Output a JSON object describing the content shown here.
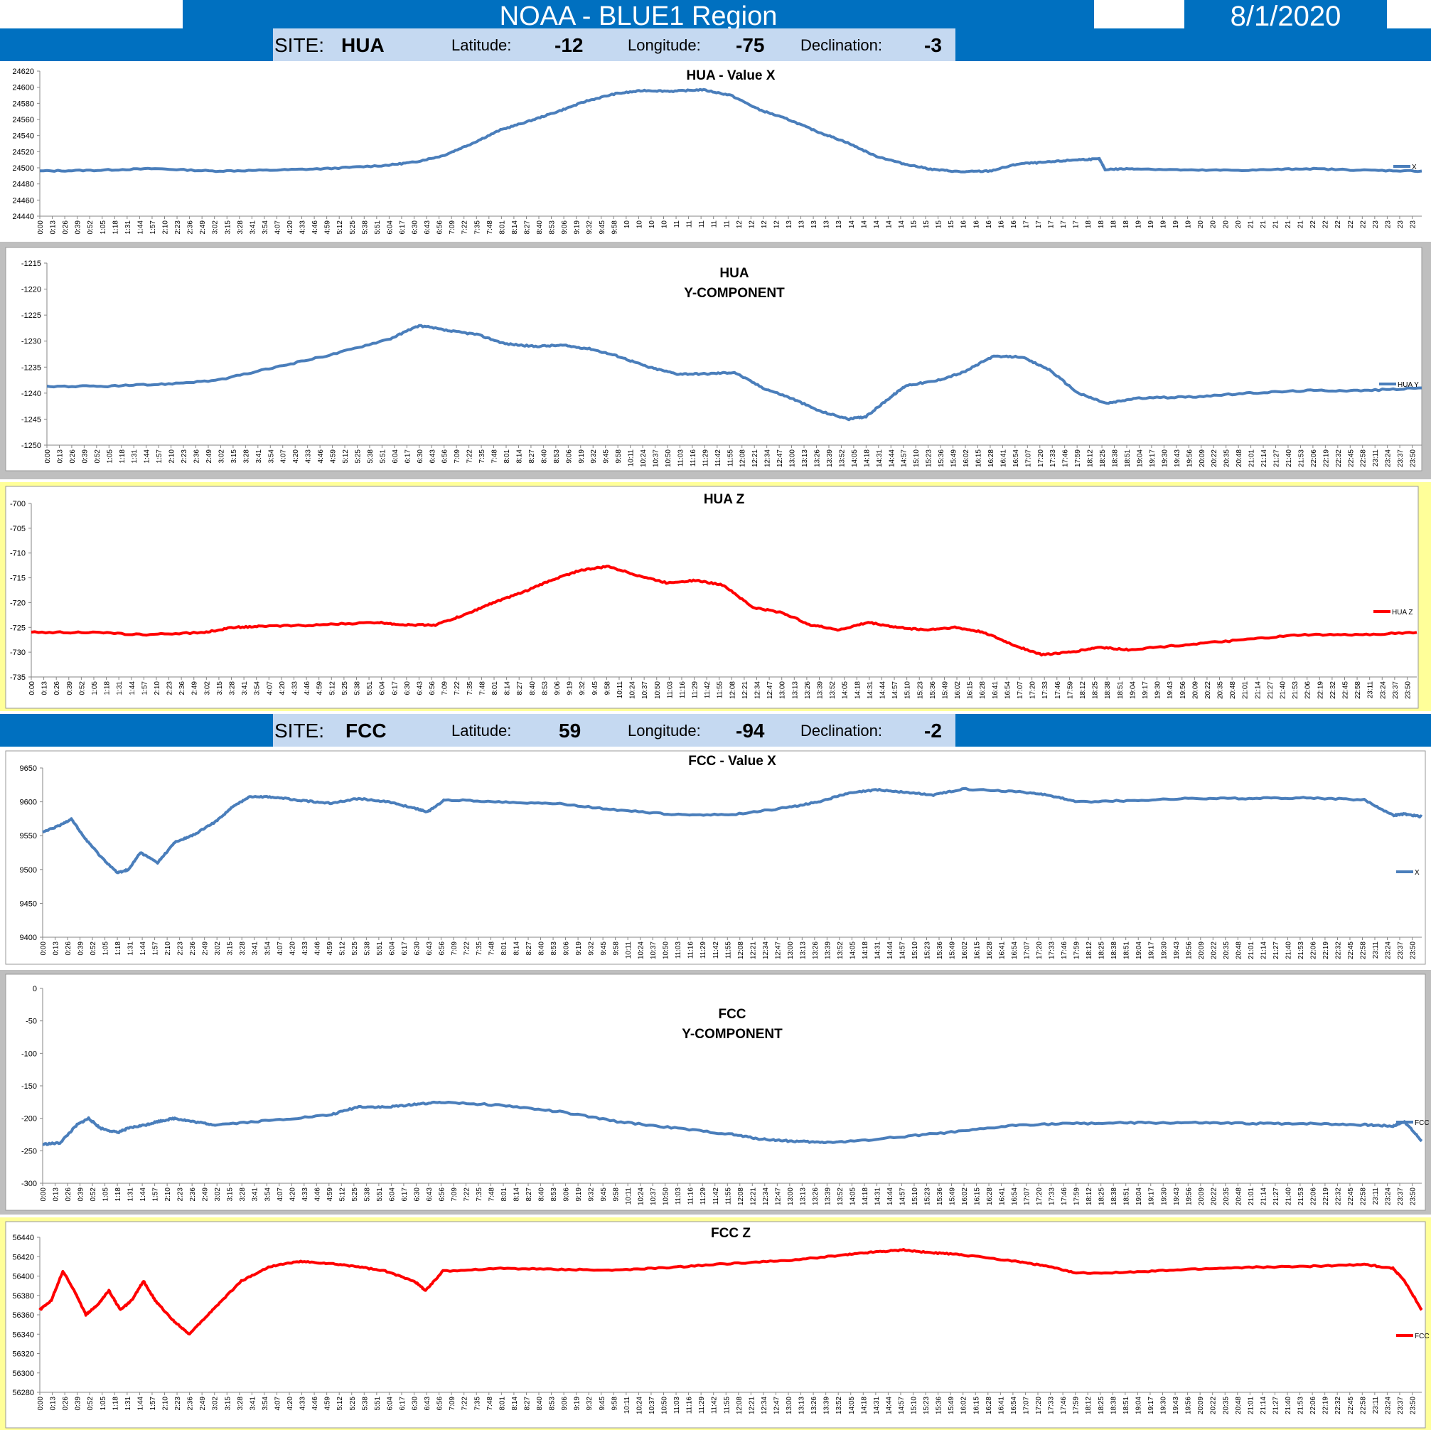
{
  "header": {
    "title": "NOAA - BLUE1 Region",
    "date": "8/1/2020"
  },
  "sites": [
    {
      "site_label": "SITE:",
      "site": "HUA",
      "lat_label": "Latitude:",
      "lat": "-12",
      "lon_label": "Longitude:",
      "lon": "-75",
      "dec_label": "Declination:",
      "dec": "-3"
    },
    {
      "site_label": "SITE:",
      "site": "FCC",
      "lat_label": "Latitude:",
      "lat": "59",
      "lon_label": "Longitude:",
      "lon": "-94",
      "dec_label": "Declination:",
      "dec": "-2"
    }
  ],
  "colors": {
    "blue_series": "#4a7ebb",
    "red_series": "#ff0000",
    "banner": "#0070c0",
    "site_box": "#c5d9f1",
    "gray_frame": "#bfbfbf",
    "yellow_frame": "#ffff99"
  },
  "chart_data": [
    {
      "id": "hua-x",
      "type": "line",
      "title": "HUA - Value X",
      "legend": "X",
      "legend_position": "right",
      "ylim": [
        24440,
        24620
      ],
      "yticks": [
        24440,
        24460,
        24480,
        24500,
        24520,
        24540,
        24560,
        24580,
        24600,
        24620
      ],
      "tick_start": "0:00",
      "tick_step_min": 13,
      "tick_cut_after": "9:58",
      "x": [
        0,
        1,
        2,
        3,
        4,
        5,
        6,
        6.5,
        7,
        7.5,
        8,
        8.5,
        9,
        9.5,
        10,
        10.5,
        11,
        11.5,
        12,
        12.5,
        13,
        13.5,
        14,
        14.5,
        15,
        15.5,
        16,
        16.5,
        17,
        17.5,
        18,
        18.4,
        18.5,
        19,
        20,
        21,
        22,
        23,
        24
      ],
      "values": [
        24496,
        24497,
        24499,
        24496,
        24497,
        24499,
        24503,
        24507,
        24515,
        24530,
        24547,
        24558,
        24570,
        24583,
        24592,
        24596,
        24595,
        24597,
        24590,
        24572,
        24560,
        24545,
        24532,
        24515,
        24505,
        24498,
        24495,
        24496,
        24505,
        24507,
        24510,
        24511,
        24498,
        24499,
        24497,
        24497,
        24499,
        24497,
        24496
      ]
    },
    {
      "id": "hua-y",
      "type": "line",
      "title": "HUA",
      "subtitle": "Y-COMPONENT",
      "legend": "HUA Y",
      "legend_position": "right",
      "ylim": [
        -1250,
        -1215
      ],
      "yticks": [
        -1250,
        -1245,
        -1240,
        -1235,
        -1230,
        -1225,
        -1220,
        -1215
      ],
      "tick_start": "0:00",
      "tick_step_min": 13,
      "x": [
        0,
        1,
        2,
        3,
        4,
        5,
        6,
        6.5,
        7,
        7.5,
        8,
        8.5,
        9,
        9.5,
        10,
        10.5,
        11,
        11.5,
        12,
        12.5,
        13,
        13.5,
        14,
        14.3,
        14.7,
        15,
        15.5,
        16,
        16.5,
        17,
        17.5,
        18,
        18.5,
        19,
        20,
        21,
        22,
        23,
        24
      ],
      "values": [
        -1238.7,
        -1238.7,
        -1238.3,
        -1237.5,
        -1235,
        -1232.5,
        -1229.5,
        -1227,
        -1228,
        -1228.7,
        -1230.5,
        -1231,
        -1230.8,
        -1231.5,
        -1233,
        -1235,
        -1236.3,
        -1236.3,
        -1236,
        -1239,
        -1241,
        -1243.5,
        -1245,
        -1244.5,
        -1241,
        -1238.5,
        -1237.7,
        -1236,
        -1233,
        -1233,
        -1235.5,
        -1240,
        -1242,
        -1241,
        -1240.7,
        -1240,
        -1239.5,
        -1239.5,
        -1239
      ]
    },
    {
      "id": "hua-z",
      "type": "line",
      "title": "HUA Z",
      "legend": "HUA Z",
      "legend_position": "right",
      "ylim": [
        -735,
        -700
      ],
      "yticks": [
        -700,
        -705,
        -710,
        -715,
        -720,
        -725,
        -730,
        -735
      ],
      "tick_start": "0:00",
      "tick_step_min": 13,
      "x": [
        0,
        1,
        2,
        3,
        3.5,
        4,
        5,
        6,
        6.5,
        7,
        7.5,
        8,
        8.5,
        9,
        9.5,
        10,
        10.5,
        11,
        11.5,
        12,
        12.5,
        13,
        13.5,
        14,
        14.5,
        15,
        15.5,
        16,
        16.5,
        17,
        17.5,
        18,
        18.5,
        19,
        20,
        21,
        22,
        23,
        24
      ],
      "values": [
        -726,
        -726,
        -726.5,
        -726,
        -725,
        -724.8,
        -724.5,
        -724,
        -724.5,
        -724.5,
        -722.5,
        -720,
        -718,
        -715.5,
        -713.5,
        -712.7,
        -714.5,
        -716,
        -715.5,
        -716.5,
        -721,
        -722,
        -724.5,
        -725.5,
        -724,
        -725,
        -725.5,
        -725,
        -726,
        -728.5,
        -730.5,
        -730,
        -729,
        -729.5,
        -728.5,
        -727.5,
        -726.5,
        -726.5,
        -726
      ]
    },
    {
      "id": "fcc-x",
      "type": "line",
      "title": "FCC - Value X",
      "legend": "X",
      "legend_position": "right",
      "ylim": [
        9400,
        9650
      ],
      "yticks": [
        9400,
        9450,
        9500,
        9550,
        9600,
        9650
      ],
      "tick_start": "0:00",
      "tick_step_min": 13,
      "x": [
        0,
        0.3,
        0.5,
        0.7,
        1,
        1.3,
        1.5,
        1.7,
        2,
        2.3,
        2.6,
        3,
        3.3,
        3.6,
        4,
        4.5,
        5,
        5.5,
        6,
        6.5,
        6.7,
        7,
        8,
        9,
        10,
        11,
        12,
        13,
        13.5,
        14,
        14.5,
        15,
        15.5,
        16,
        17,
        17.5,
        18,
        19,
        20,
        21,
        22,
        23,
        23.5,
        23.7,
        24
      ],
      "values": [
        9555,
        9565,
        9575,
        9550,
        9520,
        9495,
        9500,
        9525,
        9510,
        9540,
        9550,
        9570,
        9592,
        9608,
        9607,
        9602,
        9598,
        9605,
        9600,
        9590,
        9585,
        9603,
        9600,
        9597,
        9588,
        9581,
        9581,
        9592,
        9600,
        9612,
        9618,
        9614,
        9610,
        9619,
        9615,
        9610,
        9600,
        9602,
        9605,
        9605,
        9606,
        9603,
        9580,
        9582,
        9578
      ]
    },
    {
      "id": "fcc-y",
      "type": "line",
      "title": "FCC",
      "subtitle": "Y-COMPONENT",
      "legend": "FCC Y",
      "legend_position": "right",
      "ylim": [
        -300,
        0
      ],
      "yticks": [
        0,
        -50,
        -100,
        -150,
        -200,
        -250,
        -300
      ],
      "tick_start": "0:00",
      "tick_step_min": 13,
      "x": [
        0,
        0.3,
        0.6,
        0.8,
        1,
        1.3,
        1.5,
        1.8,
        2,
        2.3,
        2.6,
        3,
        4,
        5,
        5.5,
        6,
        6.5,
        7,
        8,
        9,
        10,
        11,
        12,
        12.5,
        13,
        13.5,
        14,
        15,
        16,
        17,
        18,
        19,
        20,
        21,
        22,
        23,
        23.5,
        23.7,
        24
      ],
      "values": [
        -240,
        -238,
        -210,
        -200,
        -215,
        -222,
        -215,
        -210,
        -205,
        -200,
        -205,
        -210,
        -203,
        -195,
        -182,
        -183,
        -178,
        -175,
        -180,
        -190,
        -205,
        -215,
        -225,
        -232,
        -235,
        -237,
        -236,
        -228,
        -220,
        -210,
        -208,
        -207,
        -207,
        -208,
        -208,
        -210,
        -212,
        -205,
        -235
      ]
    },
    {
      "id": "fcc-z",
      "type": "line",
      "title": "FCC Z",
      "legend": "FCC Z",
      "legend_position": "right",
      "ylim": [
        56280,
        56440
      ],
      "yticks": [
        56280,
        56300,
        56320,
        56340,
        56360,
        56380,
        56400,
        56420,
        56440
      ],
      "tick_start": "0:00",
      "tick_step_min": 13,
      "x": [
        0,
        0.2,
        0.4,
        0.6,
        0.8,
        1,
        1.2,
        1.4,
        1.6,
        1.8,
        2,
        2.3,
        2.6,
        3,
        3.5,
        4,
        4.5,
        5,
        5.5,
        6,
        6.5,
        6.7,
        7,
        8,
        9,
        10,
        11,
        12,
        13,
        14,
        14.5,
        15,
        15.5,
        16,
        17,
        17.5,
        18,
        19,
        20,
        21,
        22,
        23,
        23.5,
        23.7,
        24
      ],
      "values": [
        56365,
        56375,
        56405,
        56385,
        56360,
        56370,
        56385,
        56365,
        56375,
        56395,
        56375,
        56355,
        56340,
        56365,
        56395,
        56410,
        56415,
        56413,
        56410,
        56405,
        56395,
        56385,
        56405,
        56408,
        56407,
        56406,
        56409,
        56413,
        56416,
        56422,
        56425,
        56427,
        56424,
        56422,
        56415,
        56410,
        56403,
        56404,
        56407,
        56409,
        56410,
        56412,
        56408,
        56395,
        56365
      ]
    }
  ]
}
